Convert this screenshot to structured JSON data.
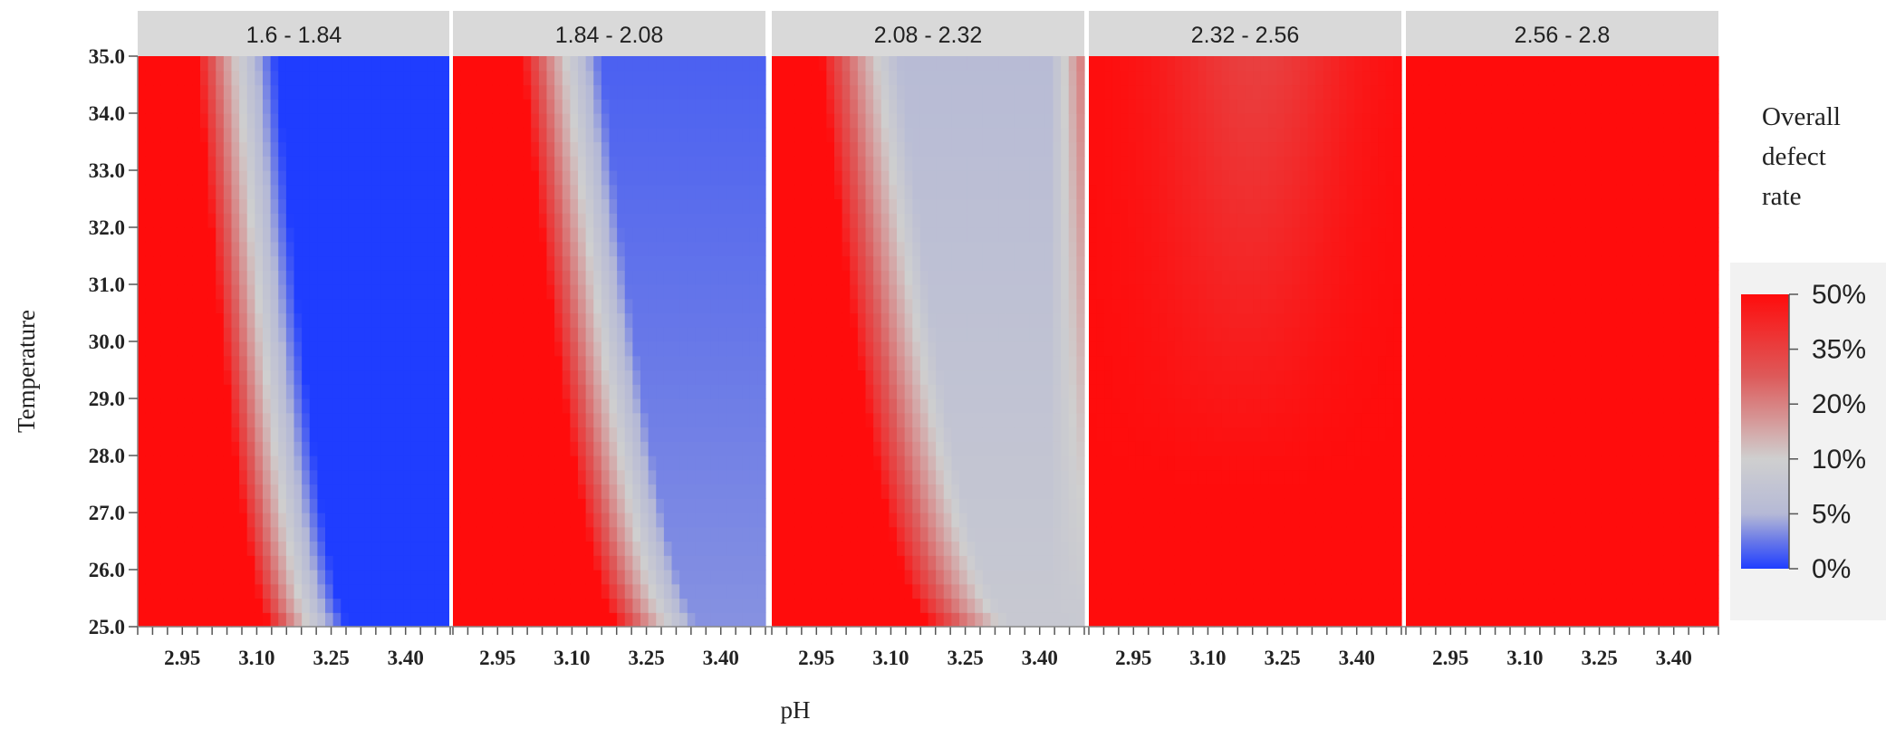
{
  "chart_data": {
    "type": "heatmap",
    "panel_variable_ranges": [
      "1.6 - 1.84",
      "1.84 - 2.08",
      "2.08 - 2.32",
      "2.32 - 2.56",
      "2.56 - 2.8"
    ],
    "x_axis": {
      "label": "pH",
      "range": [
        2.86,
        3.49
      ],
      "ticks": [
        2.95,
        3.1,
        3.25,
        3.4
      ],
      "tick_labels": [
        "2.95",
        "3.10",
        "3.25",
        "3.40"
      ]
    },
    "y_axis": {
      "label": "Temperature",
      "range": [
        25.0,
        35.0
      ],
      "ticks": [
        25,
        26,
        27,
        28,
        29,
        30,
        31,
        32,
        33,
        34,
        35
      ],
      "tick_labels": [
        "25.0",
        "26.0",
        "27.0",
        "28.0",
        "29.0",
        "30.0",
        "31.0",
        "32.0",
        "33.0",
        "34.0",
        "35.0"
      ]
    },
    "color_scale": {
      "title_lines": [
        "Overall",
        "defect",
        "rate"
      ],
      "stops": [
        {
          "value": 0,
          "color": "#1f3dff"
        },
        {
          "value": 5,
          "color": "#6878e8"
        },
        {
          "value": 10,
          "color": "#b5b9d6"
        },
        {
          "value": 20,
          "color": "#cfcfcf"
        },
        {
          "value": 35,
          "color": "#dd5a5a"
        },
        {
          "value": 50,
          "color": "#ff0c0c"
        }
      ],
      "tick_labels": [
        "50%",
        "35%",
        "20%",
        "10%",
        "5%",
        "0%"
      ],
      "range": [
        0,
        50
      ]
    },
    "grid": false,
    "legend_position": "right",
    "panels": [
      {
        "label": "1.6 - 1.84",
        "threshold_pH_at_25": 3.13,
        "threshold_pH_at_35": 2.98,
        "curvature": 0.6,
        "minimum_rate": 0,
        "minimum_at": "high pH",
        "note": "defect rate drops from 50% to ~0% as pH rises past the threshold curve"
      },
      {
        "label": "1.84 - 2.08",
        "threshold_pH_at_25": 3.2,
        "threshold_pH_at_35": 3.0,
        "curvature": 0.6,
        "minimum_rate": 3,
        "minimum_at": "high pH, upper temperature",
        "note": "defect rate drops from 50% to ~3-5%"
      },
      {
        "label": "2.08 - 2.32",
        "threshold_pH_at_25": 3.2,
        "threshold_pH_at_35": 2.96,
        "curvature": 0.5,
        "minimum_rate": 12,
        "minimum_at": "mid-high pH, upper temperature",
        "note": "defect rate drops from 50% to ~10-15%, rising again at pH ~3.45"
      },
      {
        "label": "2.32 - 2.56",
        "minimum_rate": 40,
        "minimum_at": "pH 3.0-3.4, temperature 28-35",
        "note": "almost uniformly near 50% with a faint lighter band"
      },
      {
        "label": "2.56 - 2.8",
        "minimum_rate": 50,
        "note": "uniformly 50%"
      }
    ]
  }
}
